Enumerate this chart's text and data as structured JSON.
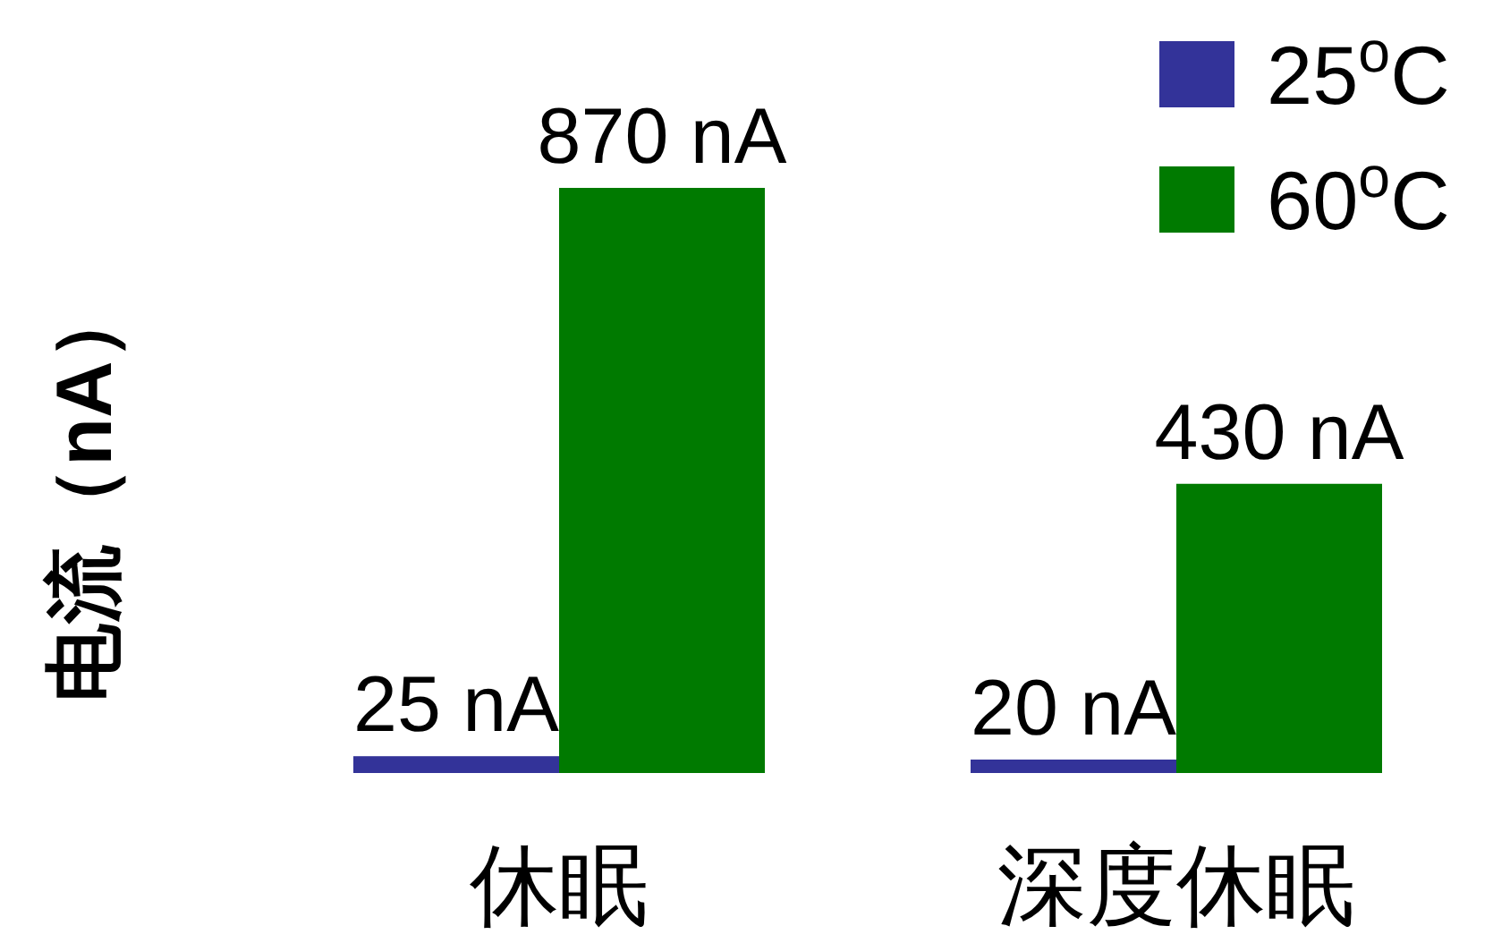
{
  "chart_data": {
    "type": "bar",
    "ylabel": "电流（nA）",
    "categories": [
      "休眠",
      "深度休眠"
    ],
    "series": [
      {
        "name": "25$^{o}$C",
        "color": "#333399",
        "values": [
          25,
          20
        ],
        "value_labels": [
          "25 nA",
          "20 nA"
        ]
      },
      {
        "name": "60$^{o}$C",
        "color": "#007a00",
        "values": [
          870,
          430
        ],
        "value_labels": [
          "870 nA",
          "430 nA"
        ]
      }
    ],
    "legend": "top right"
  }
}
